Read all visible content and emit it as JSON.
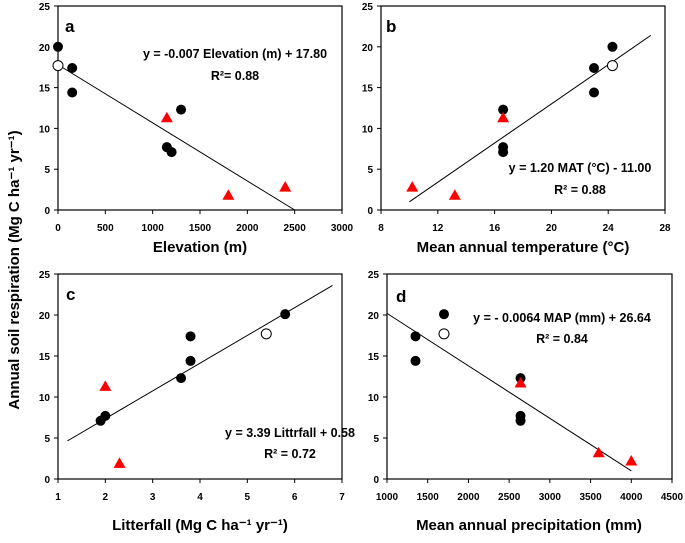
{
  "colors": {
    "circle": "#000000",
    "open_circle": "#ffffff",
    "triangle": "#ff0000",
    "line": "#000000"
  },
  "ylabel": "Annual soil respiration (Mg C ha⁻¹ yr⁻¹)",
  "chart_data": [
    {
      "type": "scatter",
      "panel": "a",
      "xlabel": "Elevation (m)",
      "ylabel": "Annual soil respiration (Mg C ha⁻¹ yr⁻¹)",
      "xlim": [
        0,
        3000
      ],
      "ylim": [
        0,
        25
      ],
      "xticks": [
        "0",
        "500",
        "1000",
        "1500",
        "2000",
        "2500",
        "3000"
      ],
      "yticks": [
        "0",
        "5",
        "10",
        "15",
        "20",
        "25"
      ],
      "equation": "y = -0.007 Elevation (m) + 17.80",
      "r2": "R²= 0.88",
      "fit_line": {
        "x": [
          0,
          2500
        ],
        "y": [
          17.8,
          0.0
        ]
      },
      "series": [
        {
          "name": "filled circles",
          "marker": "circle",
          "points": [
            [
              0,
              20.0
            ],
            [
              150,
              17.4
            ],
            [
              150,
              14.4
            ],
            [
              1300,
              12.3
            ],
            [
              1150,
              7.7
            ],
            [
              1200,
              7.1
            ]
          ]
        },
        {
          "name": "open circle",
          "marker": "open-circle",
          "points": [
            [
              0,
              17.7
            ]
          ]
        },
        {
          "name": "triangles",
          "marker": "triangle",
          "points": [
            [
              1150,
              11.3
            ],
            [
              1800,
              1.8
            ],
            [
              2400,
              2.8
            ]
          ]
        }
      ]
    },
    {
      "type": "scatter",
      "panel": "b",
      "xlabel": "Mean annual temperature (°C)",
      "ylabel": "",
      "xlim": [
        8,
        28
      ],
      "ylim": [
        0,
        25
      ],
      "xticks": [
        "8",
        "12",
        "16",
        "20",
        "24",
        "28"
      ],
      "yticks": [
        "0",
        "5",
        "10",
        "15",
        "20",
        "25"
      ],
      "equation": "y = 1.20 MAT (°C) - 11.00",
      "r2": "R² = 0.88",
      "fit_line": {
        "x": [
          10,
          27
        ],
        "y": [
          1.0,
          21.4
        ]
      },
      "series": [
        {
          "name": "filled circles",
          "marker": "circle",
          "points": [
            [
              24.3,
              20.0
            ],
            [
              23.0,
              17.4
            ],
            [
              23.0,
              14.4
            ],
            [
              16.6,
              12.3
            ],
            [
              16.6,
              7.7
            ],
            [
              16.6,
              7.1
            ]
          ]
        },
        {
          "name": "open circle",
          "marker": "open-circle",
          "points": [
            [
              24.3,
              17.7
            ]
          ]
        },
        {
          "name": "triangles",
          "marker": "triangle",
          "points": [
            [
              16.6,
              11.3
            ],
            [
              10.2,
              2.8
            ],
            [
              13.2,
              1.8
            ]
          ]
        }
      ]
    },
    {
      "type": "scatter",
      "panel": "c",
      "xlabel": "Litterfall (Mg C ha⁻¹ yr⁻¹)",
      "ylabel": "Annual soil respiration (Mg C ha⁻¹ yr⁻¹)",
      "xlim": [
        1,
        7
      ],
      "ylim": [
        0,
        25
      ],
      "xticks": [
        "1",
        "2",
        "3",
        "4",
        "5",
        "6",
        "7"
      ],
      "yticks": [
        "0",
        "5",
        "10",
        "15",
        "20",
        "25"
      ],
      "equation": "y = 3.39 Littrfall + 0.58",
      "r2": "R² = 0.72",
      "fit_line": {
        "x": [
          1.2,
          6.8
        ],
        "y": [
          4.65,
          23.6
        ]
      },
      "series": [
        {
          "name": "filled circles",
          "marker": "circle",
          "points": [
            [
              5.8,
              20.1
            ],
            [
              3.8,
              17.4
            ],
            [
              3.8,
              14.4
            ],
            [
              3.6,
              12.3
            ],
            [
              2.0,
              7.7
            ],
            [
              1.9,
              7.1
            ]
          ]
        },
        {
          "name": "open circle",
          "marker": "open-circle",
          "points": [
            [
              5.4,
              17.7
            ]
          ]
        },
        {
          "name": "triangles",
          "marker": "triangle",
          "points": [
            [
              2.0,
              11.3
            ],
            [
              2.3,
              1.9
            ]
          ]
        }
      ]
    },
    {
      "type": "scatter",
      "panel": "d",
      "xlabel": "Mean annual precipitation (mm)",
      "ylabel": "",
      "xlim": [
        1000,
        4500
      ],
      "ylim": [
        0,
        25
      ],
      "xticks": [
        "1000",
        "1500",
        "2000",
        "2500",
        "3000",
        "3500",
        "4000",
        "4500"
      ],
      "yticks": [
        "0",
        "5",
        "10",
        "15",
        "20",
        "25"
      ],
      "equation": "y = - 0.0064 MAP (mm) + 26.64",
      "r2": "R² = 0.84",
      "fit_line": {
        "x": [
          1000,
          4000
        ],
        "y": [
          20.2,
          1.0
        ]
      },
      "series": [
        {
          "name": "filled circles",
          "marker": "circle",
          "points": [
            [
              1700,
              20.1
            ],
            [
              1350,
              17.4
            ],
            [
              1350,
              14.4
            ],
            [
              2640,
              12.3
            ],
            [
              2640,
              7.7
            ],
            [
              2640,
              7.1
            ]
          ]
        },
        {
          "name": "open circle",
          "marker": "open-circle",
          "points": [
            [
              1700,
              17.7
            ]
          ]
        },
        {
          "name": "triangles",
          "marker": "triangle",
          "points": [
            [
              2640,
              11.7
            ],
            [
              3600,
              3.2
            ],
            [
              4000,
              2.2
            ]
          ]
        }
      ]
    }
  ]
}
